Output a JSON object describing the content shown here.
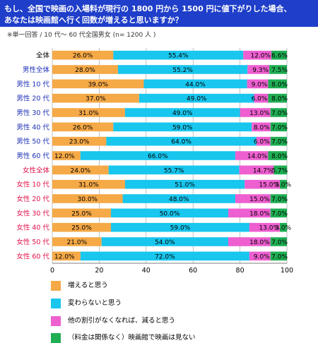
{
  "title": {
    "line1": "もし、全国で映画の入場料が現行の 1800 円から 1500 円に値下がりした場合、",
    "line2": "あなたは映画館へ行く回数が増えると思いますか？"
  },
  "note": "※単一回答 / 10 代～ 60 代全国男女 (n= 1200 人 )",
  "colors": {
    "title_bg": "#1f3ec9",
    "series": [
      "#f5a947",
      "#18c6ee",
      "#ee5fd0",
      "#1fae53"
    ],
    "label_total": "#000000",
    "label_male": "#1b2fb5",
    "label_female": "#e0134c"
  },
  "chart_data": {
    "type": "bar",
    "orientation": "horizontal",
    "stacked": true,
    "xlim": [
      0,
      100
    ],
    "x_ticks": [
      "0",
      "20",
      "40",
      "60",
      "80",
      "100"
    ],
    "categories": [
      "全体",
      "男性全体",
      "男性 10 代",
      "男性 20 代",
      "男性 30 代",
      "男性 40 代",
      "男性 50 代",
      "男性 60 代",
      "女性全体",
      "女性 10 代",
      "女性 20 代",
      "女性 30 代",
      "女性 40 代",
      "女性 50 代",
      "女性 60 代"
    ],
    "category_groups": [
      "total",
      "male",
      "male",
      "male",
      "male",
      "male",
      "male",
      "male",
      "female",
      "female",
      "female",
      "female",
      "female",
      "female",
      "female"
    ],
    "series": [
      {
        "name": "増えると思う",
        "values": [
          26.0,
          28.0,
          39.0,
          37.0,
          31.0,
          26.0,
          23.0,
          12.0,
          24.0,
          31.0,
          30.0,
          25.0,
          25.0,
          21.0,
          12.0
        ],
        "labels": [
          "26.0%",
          "28.0%",
          "39.0%",
          "37.0%",
          "31.0%",
          "26.0%",
          "23.0%",
          "12.0%",
          "24.0%",
          "31.0%",
          "30.0%",
          "25.0%",
          "25.0%",
          "21.0%",
          "12.0%"
        ]
      },
      {
        "name": "変わらないと思う",
        "values": [
          55.4,
          55.2,
          44.0,
          49.0,
          49.0,
          59.0,
          64.0,
          66.0,
          55.7,
          51.0,
          48.0,
          50.0,
          59.0,
          54.0,
          72.0
        ],
        "labels": [
          "55.4%",
          "55.2%",
          "44.0%",
          "49.0%",
          "49.0%",
          "59.0%",
          "64.0%",
          "66.0%",
          "55.7%",
          "51.0%",
          "48.0%",
          "50.0%",
          "59.0%",
          "54.0%",
          "72.0%"
        ]
      },
      {
        "name": "他の割引がなくなれば、減ると思う",
        "values": [
          12.0,
          9.3,
          9.0,
          6.0,
          13.0,
          8.0,
          6.0,
          14.0,
          14.7,
          15.0,
          15.0,
          18.0,
          13.0,
          18.0,
          9.0
        ],
        "labels": [
          "12.0%",
          "9.3%",
          "9.0%",
          "6.0%",
          "13.0%",
          "8.0%",
          "6.0%",
          "14.0%",
          "14.7%",
          "15.0%",
          "15.0%",
          "18.0%",
          "13.0%",
          "18.0%",
          "9.0%"
        ]
      },
      {
        "name": "（料金は関係なく）映画館で映画は見ない",
        "values": [
          6.6,
          7.5,
          8.0,
          8.0,
          7.0,
          7.0,
          7.0,
          8.0,
          5.7,
          3.0,
          7.0,
          7.0,
          3.0,
          7.0,
          7.0
        ],
        "labels": [
          "6.6%",
          "7.5%",
          "8.0%",
          "8.0%",
          "7.0%",
          "7.0%",
          "7.0%",
          "8.0%",
          "5.7%",
          "3.0%",
          "7.0%",
          "7.0%",
          "3.0%",
          "7.0%",
          "7.0%"
        ]
      }
    ],
    "legend_position": "bottom"
  }
}
